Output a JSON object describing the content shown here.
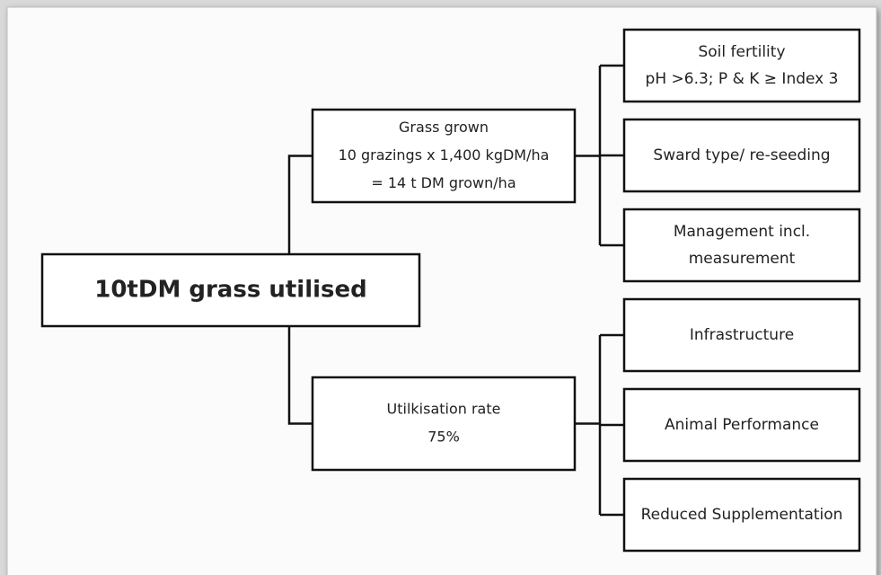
{
  "root": {
    "label": "10tDM grass utilised"
  },
  "branches": [
    {
      "lines": [
        "Grass grown",
        "10 grazings x 1,400 kgDM/ha",
        "= 14 t DM grown/ha"
      ],
      "factors": [
        {
          "lines": [
            "Soil fertility",
            "pH >6.3; P & K ≥ Index 3"
          ]
        },
        {
          "lines": [
            "Sward type/ re-seeding"
          ]
        },
        {
          "lines": [
            "Management incl.",
            "measurement"
          ]
        }
      ]
    },
    {
      "lines": [
        "Utilkisation rate",
        "75%"
      ],
      "factors": [
        {
          "lines": [
            "Infrastructure"
          ]
        },
        {
          "lines": [
            "Animal Performance"
          ]
        },
        {
          "lines": [
            "Reduced Supplementation"
          ]
        }
      ]
    }
  ]
}
